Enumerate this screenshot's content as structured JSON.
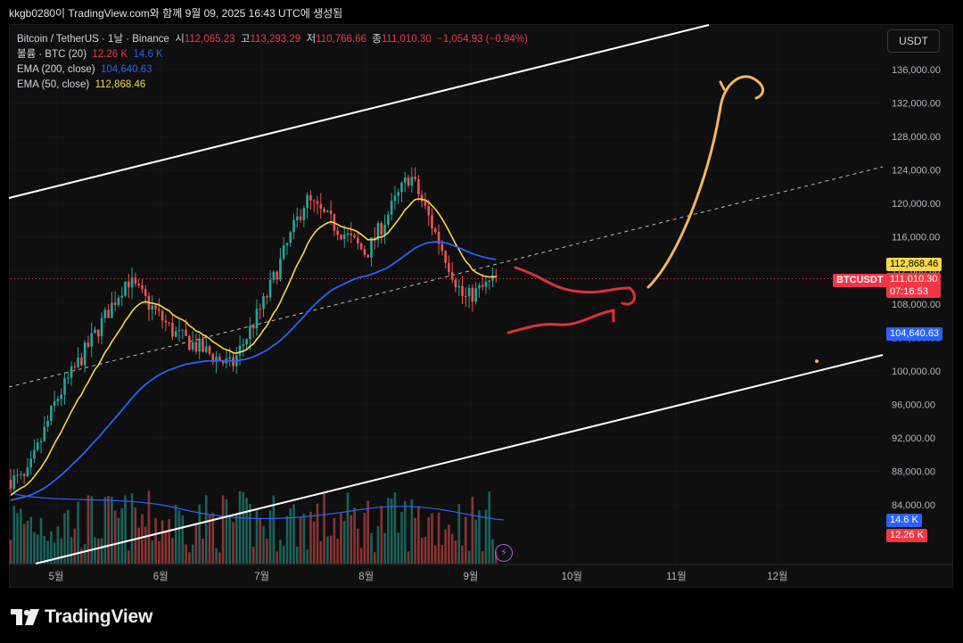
{
  "attribution": "kkgb0280이 TradingView.com와 함께 9월 09, 2025 16:43 UTC에 생성됨",
  "legend": {
    "symbol": "Bitcoin / TetherUS · 1날 · Binance",
    "open_label": "시",
    "open": "112,065.23",
    "high_label": "고",
    "high": "113,293.29",
    "low_label": "저",
    "low": "110,766.66",
    "close_label": "종",
    "close": "111,010.30",
    "change": "−1,054.93 (−0.94%)",
    "volume_label": "볼륨 · BTC (20)",
    "volume_1": "12.26 K",
    "volume_2": "14.6 K",
    "ema200_label": "EMA (200, close)",
    "ema200_value": "104,640.63",
    "ema50_label": "EMA (50, close)",
    "ema50_value": "112,868.46"
  },
  "currency_button": "USDT",
  "price_tags": {
    "ema50": "112,868.46",
    "symbol_name": "BTCUSDT",
    "last_price": "111,010.30",
    "countdown": "07:16:53",
    "ema200": "104,640.63",
    "volume_ma": "14.6 K",
    "volume": "12.26 K"
  },
  "brand": "TradingView",
  "colors": {
    "up": "#26a69a",
    "down": "#ef5350",
    "ema50": "#f7d84a",
    "ema200": "#2962ff",
    "drawing_red": "#e0303a",
    "drawing_orange": "#f5b461",
    "channel": "#ffffff"
  },
  "chart_data": {
    "type": "candlestick",
    "instrument": "Bitcoin / TetherUS",
    "timeframe": "1날",
    "exchange": "Binance",
    "y_ticks": [
      84000,
      88000,
      92000,
      96000,
      100000,
      104000,
      108000,
      112000,
      116000,
      120000,
      124000,
      128000,
      132000,
      136000
    ],
    "y_tick_labels": [
      "84,000.00",
      "88,000.00",
      "92,000.00",
      "96,000.00",
      "100,000.00",
      "104,000.00",
      "108,000.00",
      "112,000.00",
      "116,000.00",
      "120,000.00",
      "124,000.00",
      "128,000.00",
      "132,000.00",
      "136,000.00"
    ],
    "x_tick_labels": [
      "5월",
      "6월",
      "7월",
      "8월",
      "9월",
      "10월",
      "11월",
      "12월"
    ],
    "approx_monthly_price_path": [
      {
        "date": "2025-04-22",
        "close": 87000
      },
      {
        "date": "2025-05-01",
        "close": 96500
      },
      {
        "date": "2025-05-12",
        "close": 104000
      },
      {
        "date": "2025-05-22",
        "close": 111000
      },
      {
        "date": "2025-06-05",
        "close": 104500
      },
      {
        "date": "2025-06-22",
        "close": 100500
      },
      {
        "date": "2025-07-02",
        "close": 108500
      },
      {
        "date": "2025-07-14",
        "close": 120500
      },
      {
        "date": "2025-08-01",
        "close": 114000
      },
      {
        "date": "2025-08-14",
        "close": 123500
      },
      {
        "date": "2025-08-30",
        "close": 108500
      },
      {
        "date": "2025-09-09",
        "close": 111010
      }
    ],
    "indicators": [
      {
        "name": "EMA (50, close)",
        "last": 112868.46
      },
      {
        "name": "EMA (200, close)",
        "last": 104640.63
      }
    ]
  }
}
